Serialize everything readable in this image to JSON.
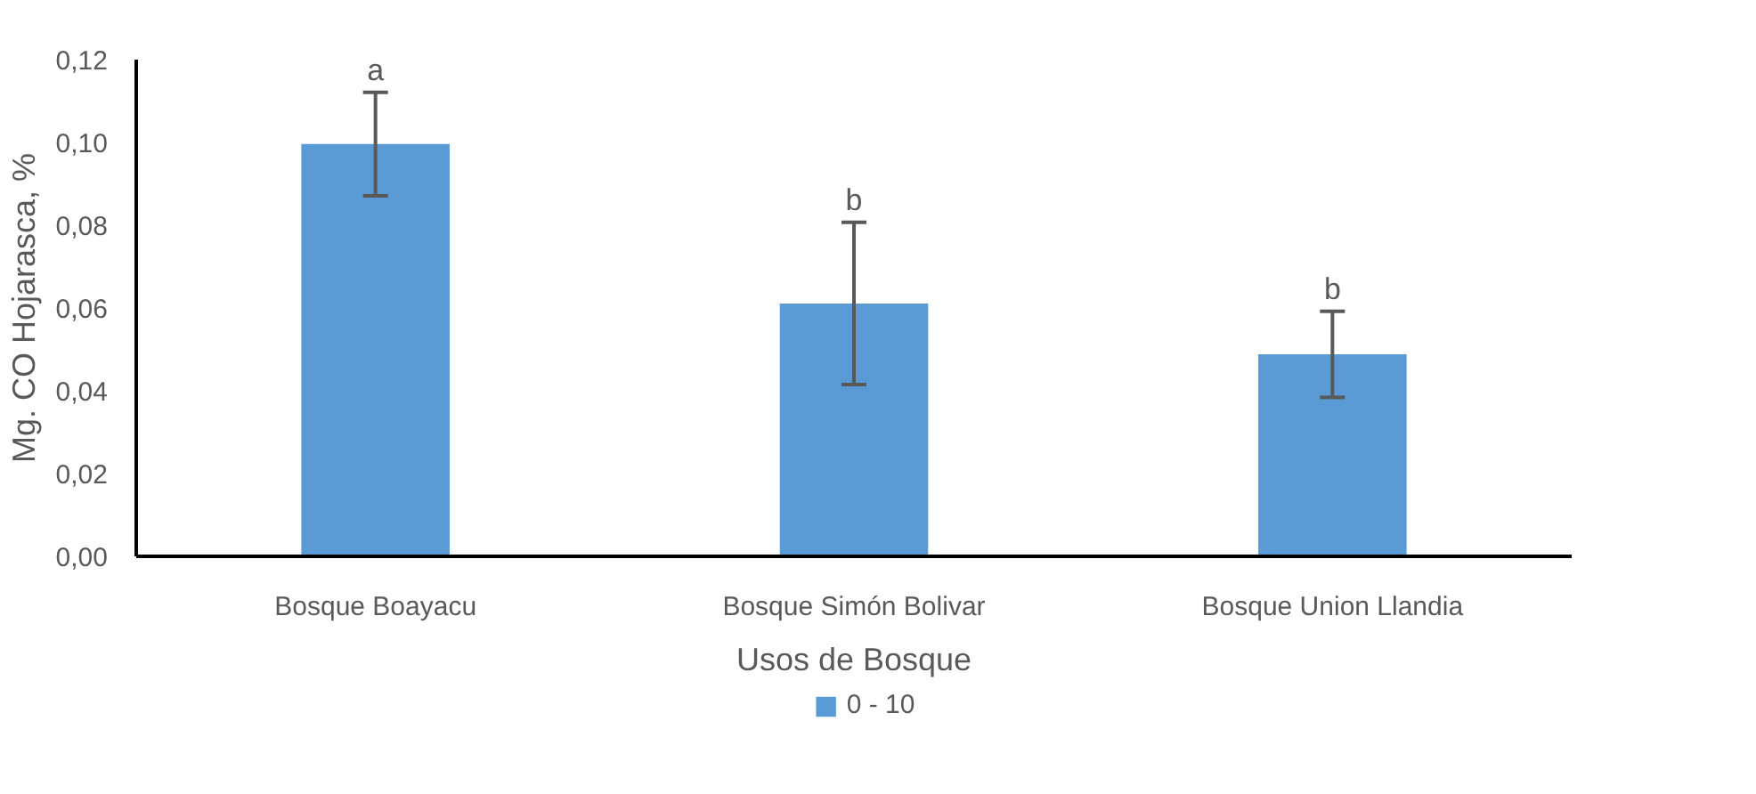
{
  "chart_data": {
    "type": "bar",
    "xlabel": "Usos de Bosque",
    "ylabel": "Mg. CO Hojarasca, %",
    "categories": [
      "Bosque Boayacu",
      "Bosque Simón Bolivar",
      "Bosque Union Llandia"
    ],
    "series": [
      {
        "name": "0 - 10",
        "color": "#5b9bd5",
        "values": [
          0.0996,
          0.0611,
          0.0488
        ],
        "errors": [
          0.0125,
          0.0196,
          0.0104
        ]
      }
    ],
    "annotations": [
      "a",
      "b",
      "b"
    ],
    "ylim": [
      0,
      0.12
    ],
    "yticks": [
      {
        "value": 0,
        "label": "0,00"
      },
      {
        "value": 0.02,
        "label": "0,02"
      },
      {
        "value": 0.04,
        "label": "0,04"
      },
      {
        "value": 0.06,
        "label": "0,06"
      },
      {
        "value": 0.08,
        "label": "0,08"
      },
      {
        "value": 0.1,
        "label": "0,10"
      },
      {
        "value": 0.12,
        "label": "0,12"
      }
    ],
    "grid": false,
    "legend": "bottom"
  }
}
